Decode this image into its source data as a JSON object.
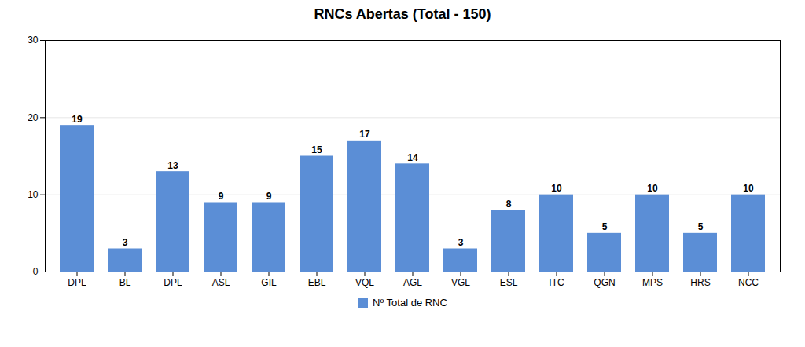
{
  "chart_data": {
    "type": "bar",
    "title": "RNCs Abertas (Total - 150)",
    "categories": [
      "DPL",
      "BL",
      "DPL",
      "ASL",
      "GIL",
      "EBL",
      "VQL",
      "AGL",
      "VGL",
      "ESL",
      "ITC",
      "QGN",
      "MPS",
      "HRS",
      "NCC"
    ],
    "series": [
      {
        "name": "Nº Total de RNC",
        "color": "#5B8ED6",
        "values": [
          19,
          3,
          13,
          9,
          9,
          15,
          17,
          14,
          3,
          8,
          10,
          5,
          10,
          5,
          10
        ]
      }
    ],
    "ylim": [
      0,
      30
    ],
    "yticks": [
      0,
      10,
      20,
      30
    ],
    "grid": true,
    "legend": "bottom",
    "data_labels": true
  }
}
